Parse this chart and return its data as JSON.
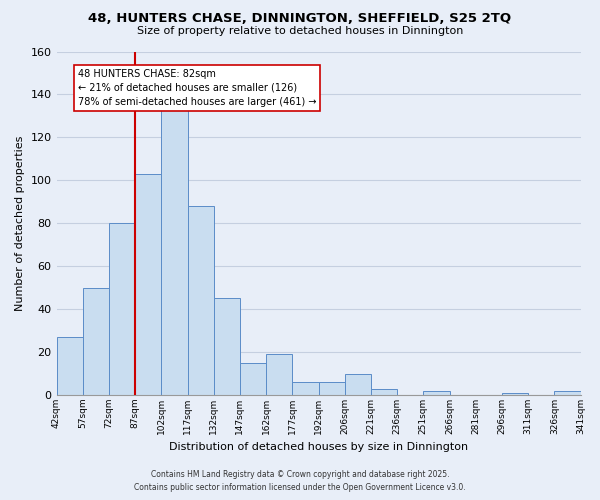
{
  "title": "48, HUNTERS CHASE, DINNINGTON, SHEFFIELD, S25 2TQ",
  "subtitle": "Size of property relative to detached houses in Dinnington",
  "xlabel": "Distribution of detached houses by size in Dinnington",
  "ylabel": "Number of detached properties",
  "bar_values": [
    27,
    50,
    80,
    103,
    133,
    88,
    45,
    15,
    19,
    6,
    6,
    10,
    3,
    0,
    2,
    0,
    0,
    1,
    0,
    2
  ],
  "bin_labels": [
    "42sqm",
    "57sqm",
    "72sqm",
    "87sqm",
    "102sqm",
    "117sqm",
    "132sqm",
    "147sqm",
    "162sqm",
    "177sqm",
    "192sqm",
    "206sqm",
    "221sqm",
    "236sqm",
    "251sqm",
    "266sqm",
    "281sqm",
    "296sqm",
    "311sqm",
    "326sqm",
    "341sqm"
  ],
  "bar_color": "#c9ddf0",
  "bar_edge_color": "#5b8cc8",
  "grid_color": "#c5cfe0",
  "background_color": "#e8eef8",
  "vline_color": "#cc0000",
  "annotation_title": "48 HUNTERS CHASE: 82sqm",
  "annotation_line1": "← 21% of detached houses are smaller (126)",
  "annotation_line2": "78% of semi-detached houses are larger (461) →",
  "annotation_box_color": "#ffffff",
  "annotation_box_edge": "#cc0000",
  "ylim": [
    0,
    160
  ],
  "yticks": [
    0,
    20,
    40,
    60,
    80,
    100,
    120,
    140,
    160
  ],
  "footnote1": "Contains HM Land Registry data © Crown copyright and database right 2025.",
  "footnote2": "Contains public sector information licensed under the Open Government Licence v3.0."
}
